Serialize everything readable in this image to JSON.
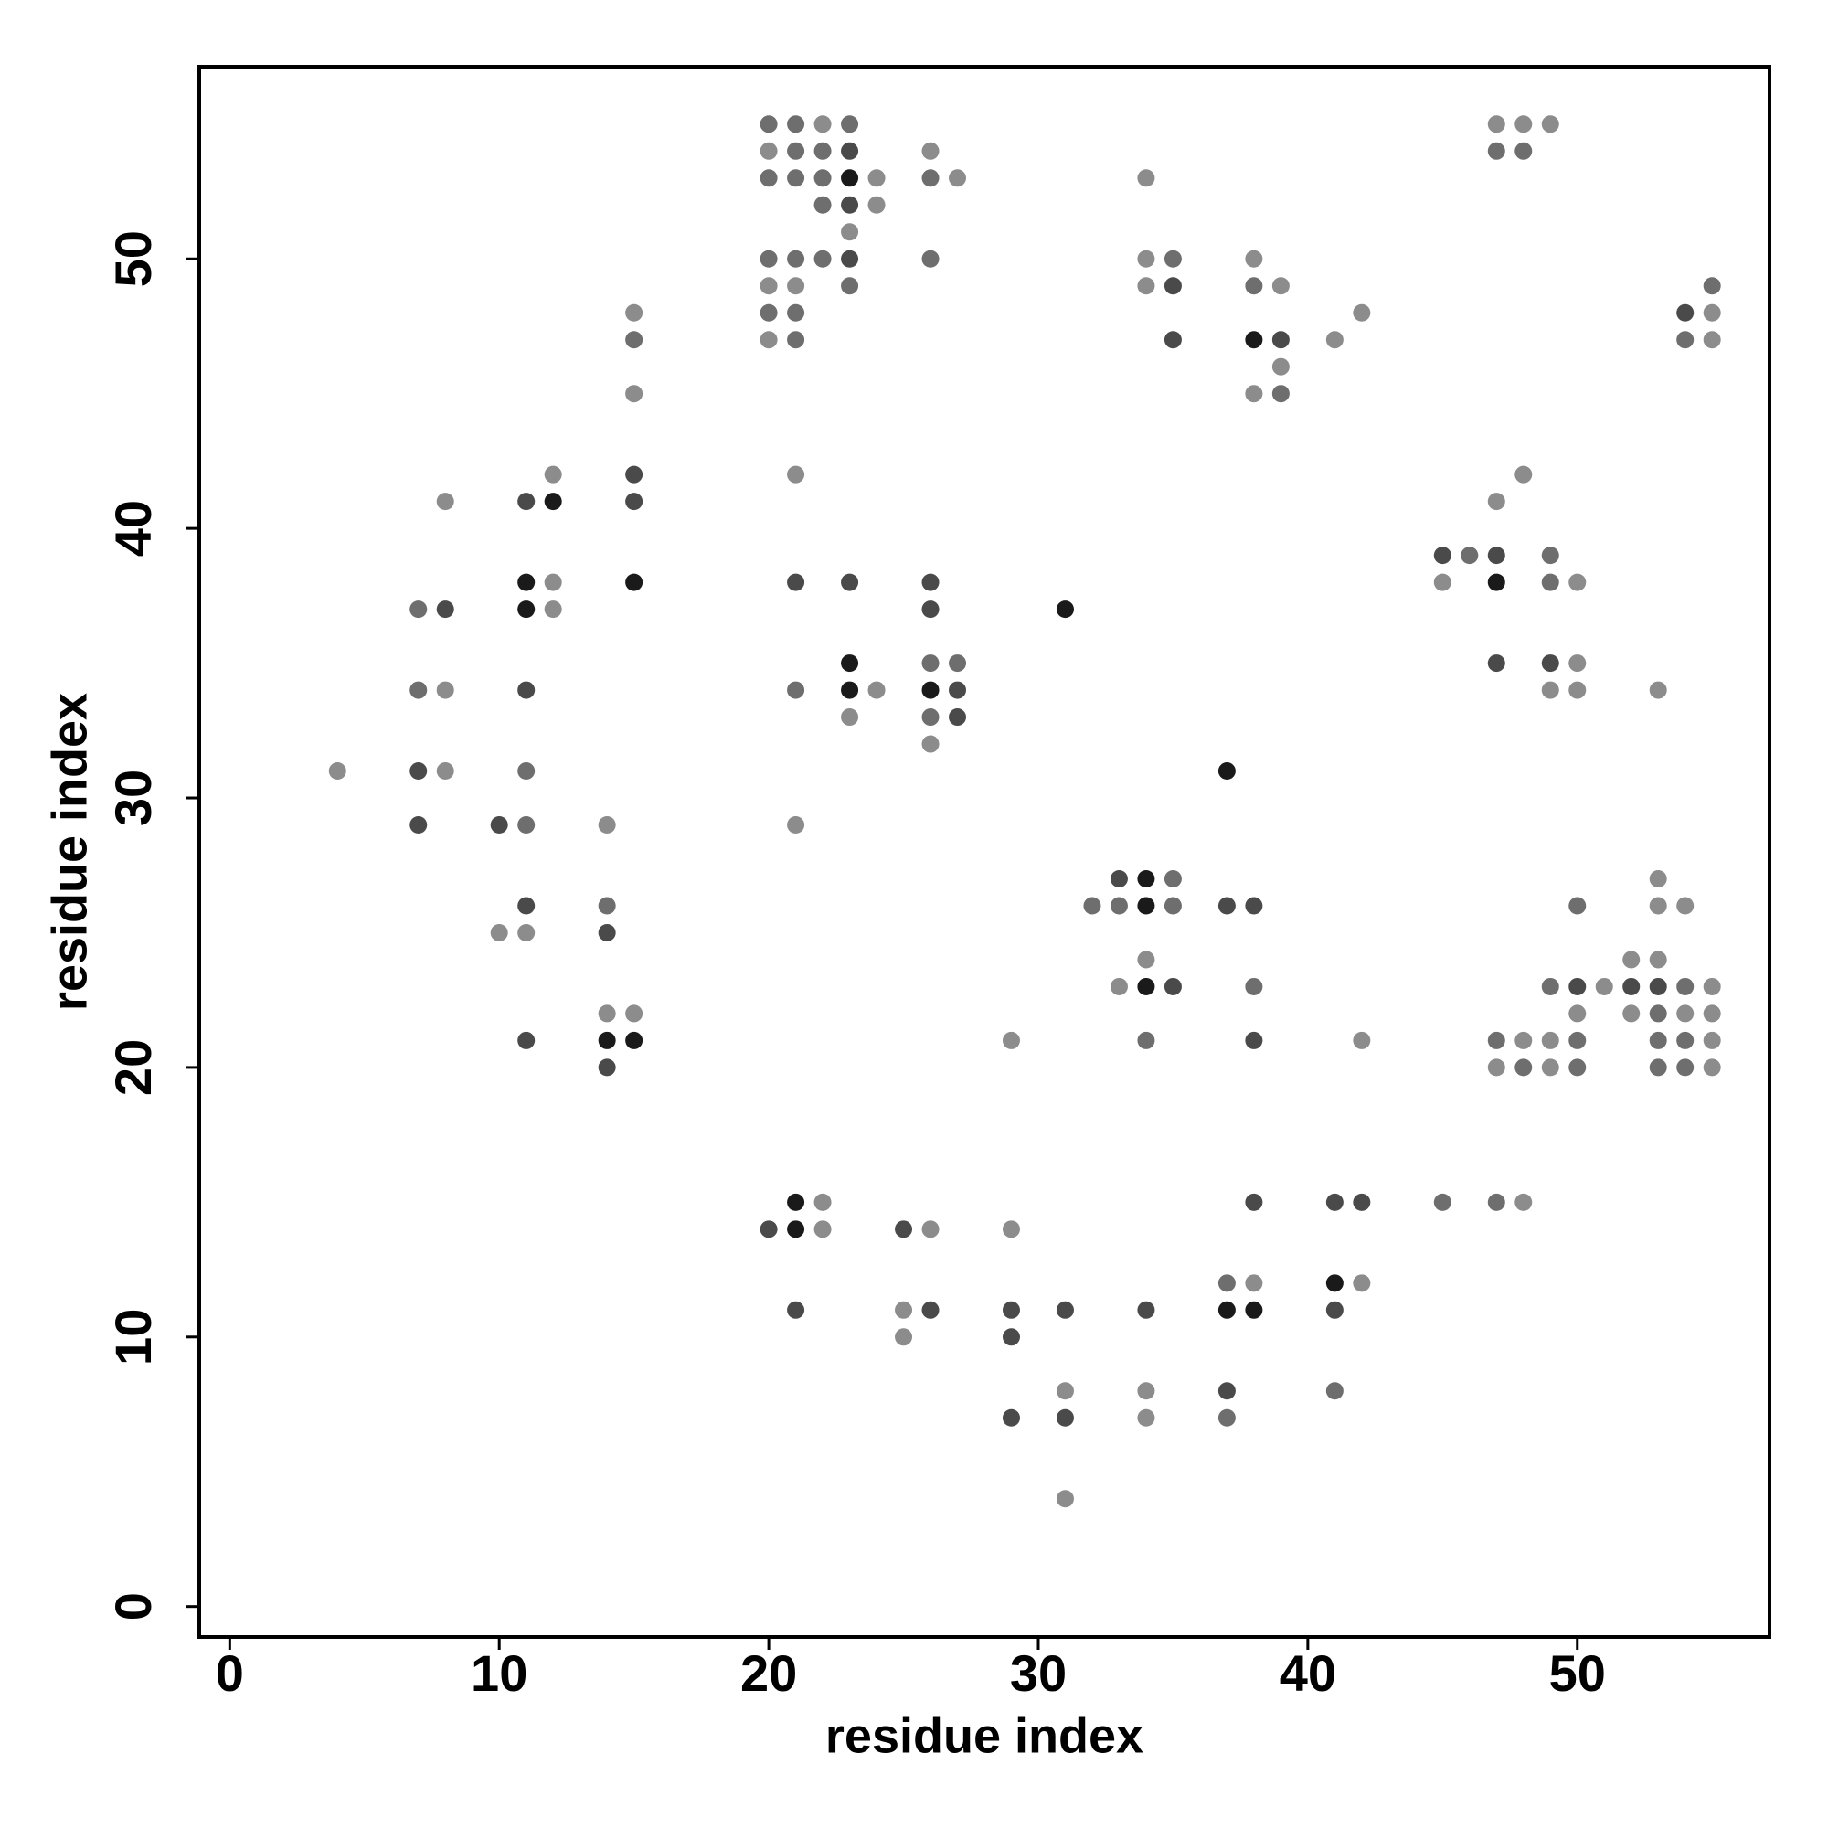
{
  "chart_data": {
    "type": "scatter",
    "xlabel": "residue index",
    "ylabel": "residue index",
    "xlim": [
      -1.13,
      57.13
    ],
    "ylim": [
      -1.13,
      57.13
    ],
    "xticks": [
      0,
      10,
      20,
      30,
      40,
      50
    ],
    "yticks": [
      0,
      10,
      20,
      30,
      40,
      50
    ],
    "points": [
      {
        "x": 4,
        "y": 31,
        "color": "#8c8c8c"
      },
      {
        "x": 7,
        "y": 37,
        "color": "#6e6e6e"
      },
      {
        "x": 7,
        "y": 34,
        "color": "#6e6e6e"
      },
      {
        "x": 7,
        "y": 31,
        "color": "#4a4a4a"
      },
      {
        "x": 7,
        "y": 29,
        "color": "#4a4a4a"
      },
      {
        "x": 8,
        "y": 41,
        "color": "#8c8c8c"
      },
      {
        "x": 8,
        "y": 37,
        "color": "#4a4a4a"
      },
      {
        "x": 8,
        "y": 34,
        "color": "#8c8c8c"
      },
      {
        "x": 8,
        "y": 31,
        "color": "#8c8c8c"
      },
      {
        "x": 10,
        "y": 29,
        "color": "#4a4a4a"
      },
      {
        "x": 10,
        "y": 25,
        "color": "#8c8c8c"
      },
      {
        "x": 11,
        "y": 41,
        "color": "#4a4a4a"
      },
      {
        "x": 11,
        "y": 38,
        "color": "#1a1a1a"
      },
      {
        "x": 11,
        "y": 37,
        "color": "#1a1a1a"
      },
      {
        "x": 11,
        "y": 34,
        "color": "#4a4a4a"
      },
      {
        "x": 11,
        "y": 31,
        "color": "#6e6e6e"
      },
      {
        "x": 11,
        "y": 29,
        "color": "#6e6e6e"
      },
      {
        "x": 11,
        "y": 26,
        "color": "#4a4a4a"
      },
      {
        "x": 11,
        "y": 25,
        "color": "#8c8c8c"
      },
      {
        "x": 11,
        "y": 21,
        "color": "#4a4a4a"
      },
      {
        "x": 12,
        "y": 42,
        "color": "#8c8c8c"
      },
      {
        "x": 12,
        "y": 41,
        "color": "#1a1a1a"
      },
      {
        "x": 12,
        "y": 38,
        "color": "#8c8c8c"
      },
      {
        "x": 12,
        "y": 37,
        "color": "#8c8c8c"
      },
      {
        "x": 14,
        "y": 29,
        "color": "#8c8c8c"
      },
      {
        "x": 14,
        "y": 26,
        "color": "#6e6e6e"
      },
      {
        "x": 14,
        "y": 25,
        "color": "#4a4a4a"
      },
      {
        "x": 14,
        "y": 22,
        "color": "#8c8c8c"
      },
      {
        "x": 14,
        "y": 21,
        "color": "#1a1a1a"
      },
      {
        "x": 14,
        "y": 20,
        "color": "#4a4a4a"
      },
      {
        "x": 15,
        "y": 48,
        "color": "#8c8c8c"
      },
      {
        "x": 15,
        "y": 47,
        "color": "#6e6e6e"
      },
      {
        "x": 15,
        "y": 45,
        "color": "#8c8c8c"
      },
      {
        "x": 15,
        "y": 42,
        "color": "#4a4a4a"
      },
      {
        "x": 15,
        "y": 41,
        "color": "#4a4a4a"
      },
      {
        "x": 15,
        "y": 38,
        "color": "#1a1a1a"
      },
      {
        "x": 15,
        "y": 22,
        "color": "#8c8c8c"
      },
      {
        "x": 15,
        "y": 21,
        "color": "#1a1a1a"
      },
      {
        "x": 20,
        "y": 55,
        "color": "#6e6e6e"
      },
      {
        "x": 20,
        "y": 54,
        "color": "#8c8c8c"
      },
      {
        "x": 20,
        "y": 53,
        "color": "#6e6e6e"
      },
      {
        "x": 20,
        "y": 50,
        "color": "#6e6e6e"
      },
      {
        "x": 20,
        "y": 49,
        "color": "#8c8c8c"
      },
      {
        "x": 20,
        "y": 48,
        "color": "#6e6e6e"
      },
      {
        "x": 20,
        "y": 47,
        "color": "#8c8c8c"
      },
      {
        "x": 20,
        "y": 14,
        "color": "#4a4a4a"
      },
      {
        "x": 21,
        "y": 55,
        "color": "#6e6e6e"
      },
      {
        "x": 21,
        "y": 54,
        "color": "#6e6e6e"
      },
      {
        "x": 21,
        "y": 53,
        "color": "#6e6e6e"
      },
      {
        "x": 21,
        "y": 50,
        "color": "#6e6e6e"
      },
      {
        "x": 21,
        "y": 49,
        "color": "#8c8c8c"
      },
      {
        "x": 21,
        "y": 48,
        "color": "#6e6e6e"
      },
      {
        "x": 21,
        "y": 47,
        "color": "#6e6e6e"
      },
      {
        "x": 21,
        "y": 42,
        "color": "#8c8c8c"
      },
      {
        "x": 21,
        "y": 38,
        "color": "#4a4a4a"
      },
      {
        "x": 21,
        "y": 34,
        "color": "#6e6e6e"
      },
      {
        "x": 21,
        "y": 29,
        "color": "#8c8c8c"
      },
      {
        "x": 21,
        "y": 15,
        "color": "#1a1a1a"
      },
      {
        "x": 21,
        "y": 14,
        "color": "#1a1a1a"
      },
      {
        "x": 21,
        "y": 11,
        "color": "#4a4a4a"
      },
      {
        "x": 22,
        "y": 55,
        "color": "#8c8c8c"
      },
      {
        "x": 22,
        "y": 54,
        "color": "#6e6e6e"
      },
      {
        "x": 22,
        "y": 53,
        "color": "#6e6e6e"
      },
      {
        "x": 22,
        "y": 52,
        "color": "#6e6e6e"
      },
      {
        "x": 22,
        "y": 50,
        "color": "#6e6e6e"
      },
      {
        "x": 22,
        "y": 15,
        "color": "#8c8c8c"
      },
      {
        "x": 22,
        "y": 14,
        "color": "#8c8c8c"
      },
      {
        "x": 23,
        "y": 55,
        "color": "#6e6e6e"
      },
      {
        "x": 23,
        "y": 54,
        "color": "#4a4a4a"
      },
      {
        "x": 23,
        "y": 53,
        "color": "#1a1a1a"
      },
      {
        "x": 23,
        "y": 52,
        "color": "#4a4a4a"
      },
      {
        "x": 23,
        "y": 51,
        "color": "#8c8c8c"
      },
      {
        "x": 23,
        "y": 50,
        "color": "#4a4a4a"
      },
      {
        "x": 23,
        "y": 49,
        "color": "#6e6e6e"
      },
      {
        "x": 23,
        "y": 38,
        "color": "#4a4a4a"
      },
      {
        "x": 23,
        "y": 35,
        "color": "#1a1a1a"
      },
      {
        "x": 23,
        "y": 34,
        "color": "#1a1a1a"
      },
      {
        "x": 23,
        "y": 33,
        "color": "#8c8c8c"
      },
      {
        "x": 24,
        "y": 53,
        "color": "#8c8c8c"
      },
      {
        "x": 24,
        "y": 52,
        "color": "#8c8c8c"
      },
      {
        "x": 24,
        "y": 34,
        "color": "#8c8c8c"
      },
      {
        "x": 25,
        "y": 14,
        "color": "#4a4a4a"
      },
      {
        "x": 25,
        "y": 11,
        "color": "#8c8c8c"
      },
      {
        "x": 25,
        "y": 10,
        "color": "#8c8c8c"
      },
      {
        "x": 26,
        "y": 54,
        "color": "#8c8c8c"
      },
      {
        "x": 26,
        "y": 53,
        "color": "#6e6e6e"
      },
      {
        "x": 26,
        "y": 50,
        "color": "#6e6e6e"
      },
      {
        "x": 26,
        "y": 38,
        "color": "#4a4a4a"
      },
      {
        "x": 26,
        "y": 37,
        "color": "#4a4a4a"
      },
      {
        "x": 26,
        "y": 35,
        "color": "#6e6e6e"
      },
      {
        "x": 26,
        "y": 34,
        "color": "#1a1a1a"
      },
      {
        "x": 26,
        "y": 33,
        "color": "#6e6e6e"
      },
      {
        "x": 26,
        "y": 32,
        "color": "#8c8c8c"
      },
      {
        "x": 26,
        "y": 14,
        "color": "#8c8c8c"
      },
      {
        "x": 26,
        "y": 11,
        "color": "#4a4a4a"
      },
      {
        "x": 27,
        "y": 53,
        "color": "#8c8c8c"
      },
      {
        "x": 27,
        "y": 35,
        "color": "#6e6e6e"
      },
      {
        "x": 27,
        "y": 34,
        "color": "#4a4a4a"
      },
      {
        "x": 27,
        "y": 33,
        "color": "#4a4a4a"
      },
      {
        "x": 29,
        "y": 21,
        "color": "#8c8c8c"
      },
      {
        "x": 29,
        "y": 14,
        "color": "#8c8c8c"
      },
      {
        "x": 29,
        "y": 11,
        "color": "#4a4a4a"
      },
      {
        "x": 29,
        "y": 10,
        "color": "#4a4a4a"
      },
      {
        "x": 29,
        "y": 7,
        "color": "#4a4a4a"
      },
      {
        "x": 31,
        "y": 37,
        "color": "#1a1a1a"
      },
      {
        "x": 31,
        "y": 11,
        "color": "#4a4a4a"
      },
      {
        "x": 31,
        "y": 8,
        "color": "#8c8c8c"
      },
      {
        "x": 31,
        "y": 7,
        "color": "#4a4a4a"
      },
      {
        "x": 31,
        "y": 4,
        "color": "#8c8c8c"
      },
      {
        "x": 32,
        "y": 26,
        "color": "#6e6e6e"
      },
      {
        "x": 33,
        "y": 27,
        "color": "#4a4a4a"
      },
      {
        "x": 33,
        "y": 26,
        "color": "#6e6e6e"
      },
      {
        "x": 33,
        "y": 23,
        "color": "#8c8c8c"
      },
      {
        "x": 34,
        "y": 53,
        "color": "#8c8c8c"
      },
      {
        "x": 34,
        "y": 50,
        "color": "#8c8c8c"
      },
      {
        "x": 34,
        "y": 49,
        "color": "#8c8c8c"
      },
      {
        "x": 34,
        "y": 27,
        "color": "#1a1a1a"
      },
      {
        "x": 34,
        "y": 26,
        "color": "#1a1a1a"
      },
      {
        "x": 34,
        "y": 24,
        "color": "#8c8c8c"
      },
      {
        "x": 34,
        "y": 23,
        "color": "#1a1a1a"
      },
      {
        "x": 34,
        "y": 21,
        "color": "#6e6e6e"
      },
      {
        "x": 34,
        "y": 11,
        "color": "#4a4a4a"
      },
      {
        "x": 34,
        "y": 8,
        "color": "#8c8c8c"
      },
      {
        "x": 34,
        "y": 7,
        "color": "#8c8c8c"
      },
      {
        "x": 35,
        "y": 50,
        "color": "#6e6e6e"
      },
      {
        "x": 35,
        "y": 49,
        "color": "#4a4a4a"
      },
      {
        "x": 35,
        "y": 47,
        "color": "#4a4a4a"
      },
      {
        "x": 35,
        "y": 27,
        "color": "#6e6e6e"
      },
      {
        "x": 35,
        "y": 26,
        "color": "#6e6e6e"
      },
      {
        "x": 35,
        "y": 23,
        "color": "#4a4a4a"
      },
      {
        "x": 37,
        "y": 31,
        "color": "#1a1a1a"
      },
      {
        "x": 37,
        "y": 26,
        "color": "#4a4a4a"
      },
      {
        "x": 37,
        "y": 12,
        "color": "#6e6e6e"
      },
      {
        "x": 37,
        "y": 11,
        "color": "#1a1a1a"
      },
      {
        "x": 37,
        "y": 8,
        "color": "#4a4a4a"
      },
      {
        "x": 37,
        "y": 7,
        "color": "#6e6e6e"
      },
      {
        "x": 38,
        "y": 50,
        "color": "#8c8c8c"
      },
      {
        "x": 38,
        "y": 49,
        "color": "#6e6e6e"
      },
      {
        "x": 38,
        "y": 47,
        "color": "#1a1a1a"
      },
      {
        "x": 38,
        "y": 45,
        "color": "#8c8c8c"
      },
      {
        "x": 38,
        "y": 26,
        "color": "#4a4a4a"
      },
      {
        "x": 38,
        "y": 23,
        "color": "#6e6e6e"
      },
      {
        "x": 38,
        "y": 21,
        "color": "#4a4a4a"
      },
      {
        "x": 38,
        "y": 15,
        "color": "#4a4a4a"
      },
      {
        "x": 38,
        "y": 12,
        "color": "#8c8c8c"
      },
      {
        "x": 38,
        "y": 11,
        "color": "#1a1a1a"
      },
      {
        "x": 39,
        "y": 49,
        "color": "#8c8c8c"
      },
      {
        "x": 39,
        "y": 47,
        "color": "#4a4a4a"
      },
      {
        "x": 39,
        "y": 46,
        "color": "#8c8c8c"
      },
      {
        "x": 39,
        "y": 45,
        "color": "#6e6e6e"
      },
      {
        "x": 41,
        "y": 47,
        "color": "#8c8c8c"
      },
      {
        "x": 41,
        "y": 15,
        "color": "#4a4a4a"
      },
      {
        "x": 41,
        "y": 12,
        "color": "#1a1a1a"
      },
      {
        "x": 41,
        "y": 11,
        "color": "#4a4a4a"
      },
      {
        "x": 41,
        "y": 8,
        "color": "#6e6e6e"
      },
      {
        "x": 42,
        "y": 48,
        "color": "#8c8c8c"
      },
      {
        "x": 42,
        "y": 21,
        "color": "#8c8c8c"
      },
      {
        "x": 42,
        "y": 15,
        "color": "#4a4a4a"
      },
      {
        "x": 42,
        "y": 12,
        "color": "#8c8c8c"
      },
      {
        "x": 45,
        "y": 39,
        "color": "#4a4a4a"
      },
      {
        "x": 45,
        "y": 38,
        "color": "#8c8c8c"
      },
      {
        "x": 45,
        "y": 15,
        "color": "#6e6e6e"
      },
      {
        "x": 46,
        "y": 39,
        "color": "#6e6e6e"
      },
      {
        "x": 47,
        "y": 55,
        "color": "#8c8c8c"
      },
      {
        "x": 47,
        "y": 54,
        "color": "#6e6e6e"
      },
      {
        "x": 47,
        "y": 41,
        "color": "#8c8c8c"
      },
      {
        "x": 47,
        "y": 39,
        "color": "#4a4a4a"
      },
      {
        "x": 47,
        "y": 38,
        "color": "#1a1a1a"
      },
      {
        "x": 47,
        "y": 35,
        "color": "#4a4a4a"
      },
      {
        "x": 47,
        "y": 21,
        "color": "#6e6e6e"
      },
      {
        "x": 47,
        "y": 20,
        "color": "#8c8c8c"
      },
      {
        "x": 47,
        "y": 15,
        "color": "#6e6e6e"
      },
      {
        "x": 48,
        "y": 55,
        "color": "#8c8c8c"
      },
      {
        "x": 48,
        "y": 54,
        "color": "#6e6e6e"
      },
      {
        "x": 48,
        "y": 42,
        "color": "#8c8c8c"
      },
      {
        "x": 48,
        "y": 21,
        "color": "#8c8c8c"
      },
      {
        "x": 48,
        "y": 20,
        "color": "#6e6e6e"
      },
      {
        "x": 48,
        "y": 15,
        "color": "#8c8c8c"
      },
      {
        "x": 49,
        "y": 55,
        "color": "#8c8c8c"
      },
      {
        "x": 49,
        "y": 39,
        "color": "#6e6e6e"
      },
      {
        "x": 49,
        "y": 38,
        "color": "#6e6e6e"
      },
      {
        "x": 49,
        "y": 35,
        "color": "#4a4a4a"
      },
      {
        "x": 49,
        "y": 34,
        "color": "#8c8c8c"
      },
      {
        "x": 49,
        "y": 23,
        "color": "#6e6e6e"
      },
      {
        "x": 49,
        "y": 21,
        "color": "#8c8c8c"
      },
      {
        "x": 49,
        "y": 20,
        "color": "#8c8c8c"
      },
      {
        "x": 50,
        "y": 38,
        "color": "#8c8c8c"
      },
      {
        "x": 50,
        "y": 35,
        "color": "#8c8c8c"
      },
      {
        "x": 50,
        "y": 34,
        "color": "#8c8c8c"
      },
      {
        "x": 50,
        "y": 26,
        "color": "#6e6e6e"
      },
      {
        "x": 50,
        "y": 23,
        "color": "#4a4a4a"
      },
      {
        "x": 50,
        "y": 22,
        "color": "#8c8c8c"
      },
      {
        "x": 50,
        "y": 21,
        "color": "#6e6e6e"
      },
      {
        "x": 50,
        "y": 20,
        "color": "#6e6e6e"
      },
      {
        "x": 51,
        "y": 23,
        "color": "#8c8c8c"
      },
      {
        "x": 52,
        "y": 24,
        "color": "#8c8c8c"
      },
      {
        "x": 52,
        "y": 23,
        "color": "#4a4a4a"
      },
      {
        "x": 52,
        "y": 22,
        "color": "#8c8c8c"
      },
      {
        "x": 53,
        "y": 34,
        "color": "#8c8c8c"
      },
      {
        "x": 53,
        "y": 27,
        "color": "#8c8c8c"
      },
      {
        "x": 53,
        "y": 26,
        "color": "#8c8c8c"
      },
      {
        "x": 53,
        "y": 24,
        "color": "#8c8c8c"
      },
      {
        "x": 53,
        "y": 23,
        "color": "#4a4a4a"
      },
      {
        "x": 53,
        "y": 22,
        "color": "#6e6e6e"
      },
      {
        "x": 53,
        "y": 21,
        "color": "#6e6e6e"
      },
      {
        "x": 53,
        "y": 20,
        "color": "#6e6e6e"
      },
      {
        "x": 54,
        "y": 48,
        "color": "#4a4a4a"
      },
      {
        "x": 54,
        "y": 47,
        "color": "#6e6e6e"
      },
      {
        "x": 54,
        "y": 26,
        "color": "#8c8c8c"
      },
      {
        "x": 54,
        "y": 23,
        "color": "#6e6e6e"
      },
      {
        "x": 54,
        "y": 22,
        "color": "#8c8c8c"
      },
      {
        "x": 54,
        "y": 21,
        "color": "#6e6e6e"
      },
      {
        "x": 54,
        "y": 20,
        "color": "#6e6e6e"
      },
      {
        "x": 55,
        "y": 49,
        "color": "#6e6e6e"
      },
      {
        "x": 55,
        "y": 48,
        "color": "#8c8c8c"
      },
      {
        "x": 55,
        "y": 47,
        "color": "#8c8c8c"
      },
      {
        "x": 55,
        "y": 23,
        "color": "#8c8c8c"
      },
      {
        "x": 55,
        "y": 22,
        "color": "#8c8c8c"
      },
      {
        "x": 55,
        "y": 21,
        "color": "#8c8c8c"
      },
      {
        "x": 55,
        "y": 20,
        "color": "#8c8c8c"
      }
    ]
  }
}
